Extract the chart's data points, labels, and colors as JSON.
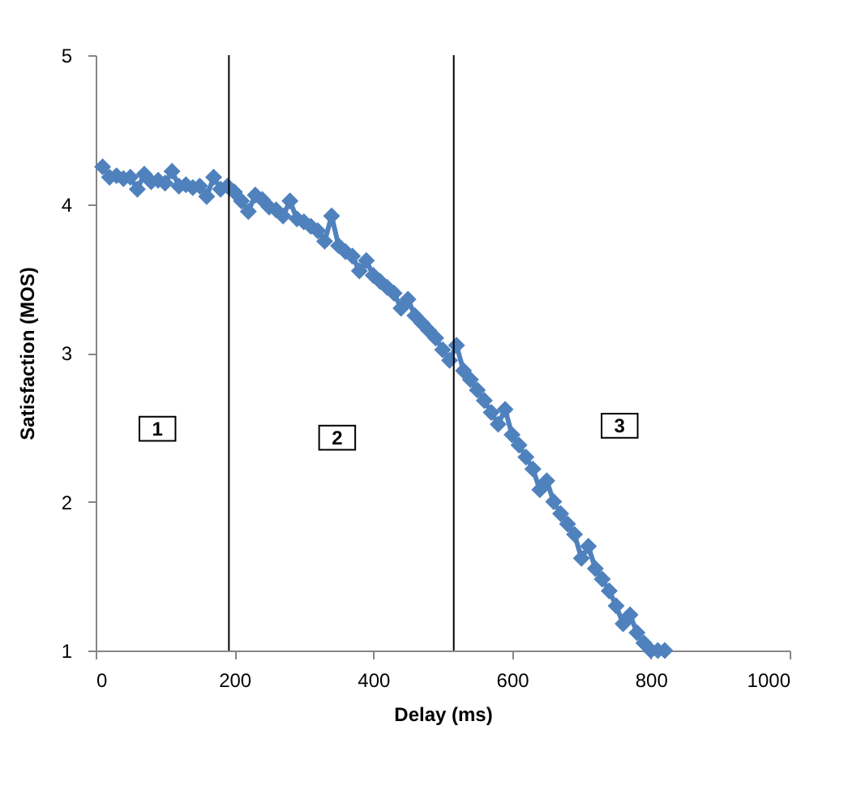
{
  "chart_data": {
    "type": "line",
    "xlabel": "Delay (ms)",
    "ylabel": "Satisfaction (MOS)",
    "x": [
      10,
      20,
      30,
      40,
      50,
      60,
      70,
      80,
      90,
      100,
      110,
      120,
      130,
      140,
      150,
      160,
      170,
      180,
      190,
      200,
      210,
      220,
      230,
      240,
      250,
      260,
      270,
      280,
      290,
      300,
      310,
      320,
      330,
      340,
      350,
      360,
      370,
      380,
      390,
      400,
      410,
      420,
      430,
      440,
      450,
      460,
      470,
      480,
      490,
      500,
      510,
      520,
      530,
      540,
      550,
      560,
      570,
      580,
      590,
      600,
      610,
      620,
      630,
      640,
      650,
      660,
      670,
      680,
      690,
      700,
      710,
      720,
      730,
      740,
      750,
      760,
      770,
      780,
      790,
      800,
      810,
      820
    ],
    "series": [
      {
        "color": "#4f81bd",
        "values": [
          4.25,
          4.18,
          4.19,
          4.17,
          4.18,
          4.1,
          4.2,
          4.15,
          4.16,
          4.14,
          4.22,
          4.12,
          4.13,
          4.11,
          4.12,
          4.05,
          4.18,
          4.1,
          4.12,
          4.08,
          4.02,
          3.95,
          4.06,
          4.03,
          3.98,
          3.96,
          3.92,
          4.02,
          3.9,
          3.88,
          3.85,
          3.82,
          3.75,
          3.92,
          3.72,
          3.68,
          3.65,
          3.55,
          3.62,
          3.52,
          3.48,
          3.44,
          3.4,
          3.3,
          3.36,
          3.25,
          3.2,
          3.15,
          3.1,
          3.02,
          2.95,
          3.05,
          2.88,
          2.82,
          2.75,
          2.68,
          2.6,
          2.52,
          2.62,
          2.45,
          2.38,
          2.3,
          2.22,
          2.08,
          2.14,
          2.0,
          1.92,
          1.85,
          1.78,
          1.62,
          1.7,
          1.55,
          1.48,
          1.4,
          1.3,
          1.18,
          1.24,
          1.12,
          1.05,
          1.0,
          1.0,
          1.0
        ]
      }
    ],
    "marker": "diamond",
    "line_style": "solid",
    "xlim": [
      0,
      1000
    ],
    "xticks": [
      0,
      200,
      400,
      600,
      800,
      1000
    ],
    "ylim": [
      1,
      5
    ],
    "yticks": [
      1,
      2,
      3,
      4,
      5
    ],
    "grid": false,
    "ref_lines": [
      {
        "axis": "x",
        "value": 192,
        "color": "#000000"
      },
      {
        "axis": "x",
        "value": 516,
        "color": "#000000"
      }
    ],
    "annotations": [
      {
        "text": "1",
        "x": 89,
        "y": 2.49
      },
      {
        "text": "2",
        "x": 348,
        "y": 2.43
      },
      {
        "text": "3",
        "x": 755,
        "y": 2.51
      }
    ]
  }
}
